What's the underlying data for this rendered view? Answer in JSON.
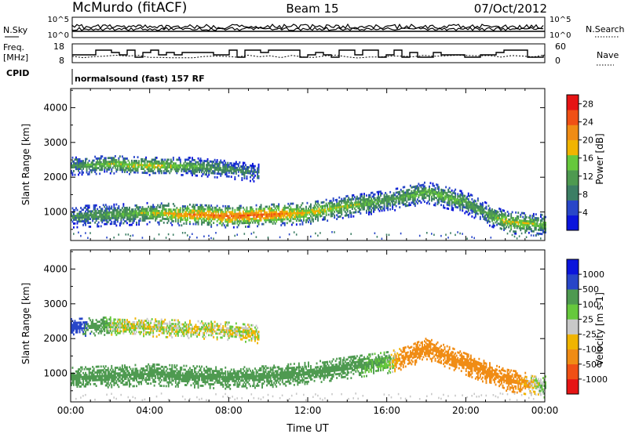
{
  "header": {
    "station": "McMurdo (fitACF)",
    "beam": "Beam 15",
    "date": "07/Oct/2012"
  },
  "status_panels": {
    "nsky_label": "N.Sky",
    "nsearch_label": "N.Search",
    "noise_ticks_left": [
      "10^5",
      "10^0"
    ],
    "noise_ticks_right": [
      "10^5",
      "10^0"
    ],
    "freq_label_1": "Freq.",
    "freq_label_2": "[MHz]",
    "freq_ticks": [
      "18",
      "8"
    ],
    "nave_label": "Nave",
    "nave_ticks": [
      "60",
      "0"
    ],
    "cpid_label": "CPID",
    "cpid_text": "normalsound (fast) 157 RF"
  },
  "colors": {
    "power": [
      "#0a14dc",
      "#2846c8",
      "#3c7e64",
      "#4e9a50",
      "#66c83c",
      "#f0b400",
      "#f08c14",
      "#f05014",
      "#e61414"
    ],
    "velocity": [
      "#e61414",
      "#f05014",
      "#f08c14",
      "#f0b400",
      "#c8c8c8",
      "#66c83c",
      "#4e9a50",
      "#2846c8",
      "#0a14dc"
    ]
  },
  "chart_data": [
    {
      "type": "heatmap",
      "panel": "power",
      "ylabel": "Slant Range [km]",
      "yticks": [
        "1000",
        "2000",
        "3000",
        "4000"
      ],
      "ylim": [
        180,
        4550
      ],
      "xlim": [
        0,
        24
      ],
      "colorbar": {
        "label": "Power [dB]",
        "ticks": [
          "4",
          "8",
          "12",
          "16",
          "20",
          "24",
          "28"
        ],
        "range": [
          0,
          30
        ]
      },
      "echo_bands": [
        {
          "t": [
            0.0,
            2.0,
            4.0,
            6.0,
            8.0,
            10.0,
            12.0,
            14.0,
            16.0,
            18.0,
            20.0,
            21.0,
            22.0,
            24.0
          ],
          "range_km": [
            850,
            900,
            950,
            900,
            850,
            900,
            950,
            1150,
            1300,
            1550,
            1250,
            950,
            700,
            600
          ],
          "level": [
            10,
            12,
            16,
            22,
            24,
            25,
            18,
            16,
            12,
            14,
            13,
            12,
            18,
            14
          ]
        },
        {
          "t": [
            0.0,
            2.0,
            4.0,
            6.0,
            8.0,
            9.5
          ],
          "range_km": [
            2300,
            2350,
            2300,
            2300,
            2200,
            2100
          ],
          "level": [
            10,
            16,
            18,
            14,
            10,
            8
          ]
        }
      ]
    },
    {
      "type": "heatmap",
      "panel": "velocity",
      "ylabel": "Slant Range [km]",
      "yticks": [
        "1000",
        "2000",
        "3000",
        "4000"
      ],
      "ylim": [
        180,
        4550
      ],
      "xlim": [
        0,
        24
      ],
      "xlabel": "Time UT",
      "xticks": [
        "00:00",
        "04:00",
        "08:00",
        "12:00",
        "16:00",
        "20:00",
        "00:00"
      ],
      "colorbar": {
        "label": "Velocity [m s-1]",
        "ticks": [
          "1000",
          "500",
          "100",
          "25",
          "-25",
          "-100",
          "-500",
          "-1000"
        ]
      },
      "echo_bands": [
        {
          "t": [
            0.0,
            2.0,
            4.0,
            6.0,
            8.0,
            10.0,
            12.0,
            14.0,
            16.0,
            17.0,
            18.0,
            20.0,
            22.0,
            24.0
          ],
          "range_km": [
            850,
            900,
            950,
            900,
            850,
            900,
            1000,
            1150,
            1300,
            1450,
            1700,
            1250,
            800,
            600
          ],
          "velocity": [
            300,
            250,
            300,
            300,
            300,
            250,
            200,
            200,
            100,
            -300,
            -400,
            -400,
            -300,
            100
          ]
        },
        {
          "t": [
            0.0,
            2.0,
            4.0,
            6.0,
            8.0,
            9.5
          ],
          "range_km": [
            2300,
            2350,
            2300,
            2250,
            2200,
            2100
          ],
          "velocity": [
            800,
            20,
            0,
            0,
            0,
            0
          ]
        }
      ]
    }
  ]
}
